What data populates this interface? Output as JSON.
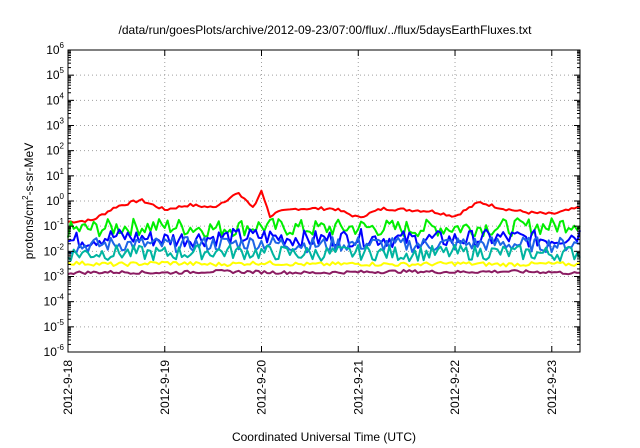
{
  "chart_data": {
    "type": "line",
    "title": "/data/run/goesPlots/archive/2012-09-23/07:00/flux/../flux/5daysEarthFluxes.txt",
    "xlabel": "Coordinated Universal Time (UTC)",
    "ylabel": "protons/cm2-s-sr-MeV",
    "ylabel_parts": {
      "pre": "protons/cm",
      "sup": "2",
      "post": "-s-sr-MeV"
    },
    "y_scale": "log",
    "ylim": [
      1e-06,
      1000000
    ],
    "y_ticks": [
      {
        "base": "10",
        "exp": "-6",
        "value": 1e-06
      },
      {
        "base": "10",
        "exp": "-5",
        "value": 1e-05
      },
      {
        "base": "10",
        "exp": "-4",
        "value": 0.0001
      },
      {
        "base": "10",
        "exp": "-3",
        "value": 0.001
      },
      {
        "base": "10",
        "exp": "-2",
        "value": 0.01
      },
      {
        "base": "10",
        "exp": "-1",
        "value": 0.1
      },
      {
        "base": "10",
        "exp": "0",
        "value": 1
      },
      {
        "base": "10",
        "exp": "1",
        "value": 10
      },
      {
        "base": "10",
        "exp": "2",
        "value": 100
      },
      {
        "base": "10",
        "exp": "3",
        "value": 1000
      },
      {
        "base": "10",
        "exp": "4",
        "value": 10000
      },
      {
        "base": "10",
        "exp": "5",
        "value": 100000
      },
      {
        "base": "10",
        "exp": "6",
        "value": 1000000
      }
    ],
    "xlim": [
      "2012-09-18T00:00",
      "2012-09-23T07:00"
    ],
    "x_ticks": [
      "2012-9-18",
      "2012-9-19",
      "2012-9-20",
      "2012-9-21",
      "2012-9-22",
      "2012-9-23"
    ],
    "x_tick_dates": [
      "2012-09-18",
      "2012-09-19",
      "2012-09-20",
      "2012-09-21",
      "2012-09-22",
      "2012-09-23"
    ],
    "grid": true,
    "legend": "none",
    "series": [
      {
        "color": "#ff0000",
        "x": [
          "2012-09-18T00:00",
          "2012-09-18T06:00",
          "2012-09-18T12:00",
          "2012-09-18T18:00",
          "2012-09-19T00:00",
          "2012-09-19T06:00",
          "2012-09-19T12:00",
          "2012-09-19T18:00",
          "2012-09-19T20:00",
          "2012-09-19T22:00",
          "2012-09-20T00:00",
          "2012-09-20T02:00",
          "2012-09-20T04:00",
          "2012-09-20T09:00",
          "2012-09-20T18:00",
          "2012-09-21T00:00",
          "2012-09-21T06:00",
          "2012-09-21T12:00",
          "2012-09-21T18:00",
          "2012-09-22T00:00",
          "2012-09-22T06:00",
          "2012-09-22T12:00",
          "2012-09-22T18:00",
          "2012-09-23T00:00",
          "2012-09-23T07:00"
        ],
        "y": [
          0.15,
          0.17,
          0.6,
          1.1,
          0.45,
          0.7,
          0.55,
          2.0,
          1.2,
          0.5,
          2.8,
          0.25,
          0.35,
          0.5,
          0.5,
          0.22,
          0.5,
          0.45,
          0.4,
          0.25,
          0.9,
          0.5,
          0.35,
          0.3,
          0.55
        ]
      },
      {
        "color": "#00ee00",
        "x": [
          "2012-09-18T00:00",
          "2012-09-18T12:00",
          "2012-09-19T00:00",
          "2012-09-19T12:00",
          "2012-09-20T00:00",
          "2012-09-20T12:00",
          "2012-09-21T00:00",
          "2012-09-21T12:00",
          "2012-09-22T00:00",
          "2012-09-22T12:00",
          "2012-09-23T00:00",
          "2012-09-23T07:00"
        ],
        "y": [
          0.07,
          0.09,
          0.1,
          0.08,
          0.1,
          0.08,
          0.09,
          0.08,
          0.09,
          0.09,
          0.1,
          0.15
        ]
      },
      {
        "color": "#0000ff",
        "x": [
          "2012-09-18T00:00",
          "2012-09-18T12:00",
          "2012-09-19T00:00",
          "2012-09-19T12:00",
          "2012-09-20T00:00",
          "2012-09-20T12:00",
          "2012-09-21T00:00",
          "2012-09-21T12:00",
          "2012-09-22T00:00",
          "2012-09-22T12:00",
          "2012-09-23T00:00",
          "2012-09-23T07:00"
        ],
        "y": [
          0.025,
          0.04,
          0.03,
          0.035,
          0.04,
          0.03,
          0.035,
          0.03,
          0.03,
          0.035,
          0.03,
          0.05
        ]
      },
      {
        "color": "#1e64e6",
        "x": [
          "2012-09-18T00:00",
          "2012-09-18T12:00",
          "2012-09-19T00:00",
          "2012-09-19T12:00",
          "2012-09-20T00:00",
          "2012-09-20T12:00",
          "2012-09-21T00:00",
          "2012-09-21T12:00",
          "2012-09-22T00:00",
          "2012-09-22T12:00",
          "2012-09-23T00:00",
          "2012-09-23T07:00"
        ],
        "y": [
          0.015,
          0.02,
          0.018,
          0.02,
          0.022,
          0.018,
          0.02,
          0.018,
          0.02,
          0.02,
          0.018,
          0.02
        ]
      },
      {
        "color": "#00b4a0",
        "x": [
          "2012-09-18T00:00",
          "2012-09-18T12:00",
          "2012-09-19T00:00",
          "2012-09-19T12:00",
          "2012-09-20T00:00",
          "2012-09-20T12:00",
          "2012-09-21T00:00",
          "2012-09-21T12:00",
          "2012-09-22T00:00",
          "2012-09-22T12:00",
          "2012-09-23T00:00",
          "2012-09-23T07:00"
        ],
        "y": [
          0.008,
          0.009,
          0.008,
          0.01,
          0.009,
          0.008,
          0.009,
          0.008,
          0.009,
          0.009,
          0.008,
          0.009
        ]
      },
      {
        "color": "#ffff00",
        "x": [
          "2012-09-18T00:00",
          "2012-09-18T12:00",
          "2012-09-19T00:00",
          "2012-09-19T12:00",
          "2012-09-20T00:00",
          "2012-09-20T12:00",
          "2012-09-21T00:00",
          "2012-09-21T12:00",
          "2012-09-22T00:00",
          "2012-09-22T12:00",
          "2012-09-23T00:00",
          "2012-09-23T07:00"
        ],
        "y": [
          0.0035,
          0.003,
          0.0035,
          0.003,
          0.0035,
          0.003,
          0.0032,
          0.003,
          0.0033,
          0.003,
          0.0032,
          0.003
        ]
      },
      {
        "color": "#8b1c62",
        "x": [
          "2012-09-18T00:00",
          "2012-09-18T12:00",
          "2012-09-19T00:00",
          "2012-09-19T12:00",
          "2012-09-20T00:00",
          "2012-09-20T12:00",
          "2012-09-21T00:00",
          "2012-09-21T12:00",
          "2012-09-22T00:00",
          "2012-09-22T12:00",
          "2012-09-23T00:00",
          "2012-09-23T07:00"
        ],
        "y": [
          0.0014,
          0.0015,
          0.0014,
          0.0016,
          0.0015,
          0.0014,
          0.0015,
          0.0016,
          0.0015,
          0.0016,
          0.0015,
          0.0013
        ]
      }
    ]
  }
}
